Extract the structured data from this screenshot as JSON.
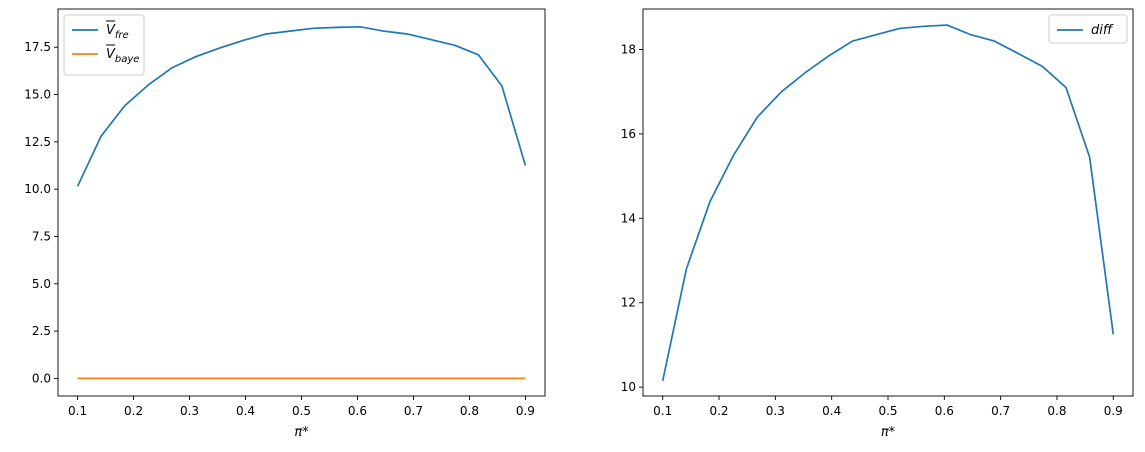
{
  "chart_data": [
    {
      "type": "line",
      "title": "",
      "xlabel": "π*",
      "ylabel": "",
      "xlim": [
        0.065,
        0.935
      ],
      "ylim": [
        -0.93,
        19.52
      ],
      "xticks": [
        "0.1",
        "0.2",
        "0.3",
        "0.4",
        "0.5",
        "0.6",
        "0.7",
        "0.8",
        "0.9"
      ],
      "yticks": [
        "0.0",
        "2.5",
        "5.0",
        "7.5",
        "10.0",
        "12.5",
        "15.0",
        "17.5"
      ],
      "grid": false,
      "legend_position": "top-left",
      "x": [
        0.1,
        0.142,
        0.184,
        0.226,
        0.268,
        0.311,
        0.353,
        0.395,
        0.437,
        0.479,
        0.521,
        0.563,
        0.605,
        0.647,
        0.689,
        0.732,
        0.774,
        0.816,
        0.858,
        0.9
      ],
      "series": [
        {
          "name": "V̄_fre",
          "color": "#1f77b4",
          "values": [
            10.15,
            12.8,
            14.4,
            15.5,
            16.4,
            17.0,
            17.45,
            17.85,
            18.2,
            18.35,
            18.5,
            18.55,
            18.58,
            18.35,
            18.2,
            17.9,
            17.6,
            17.1,
            15.45,
            11.25
          ]
        },
        {
          "name": "V̄_baye",
          "color": "#ff7f0e",
          "values": [
            0,
            0,
            0,
            0,
            0,
            0,
            0,
            0,
            0,
            0,
            0,
            0,
            0,
            0,
            0,
            0,
            0,
            0,
            0,
            0
          ]
        }
      ]
    },
    {
      "type": "line",
      "title": "",
      "xlabel": "π*",
      "ylabel": "",
      "xlim": [
        0.065,
        0.935
      ],
      "ylim": [
        9.79,
        18.96
      ],
      "xticks": [
        "0.1",
        "0.2",
        "0.3",
        "0.4",
        "0.5",
        "0.6",
        "0.7",
        "0.8",
        "0.9"
      ],
      "yticks": [
        "10",
        "12",
        "14",
        "16",
        "18"
      ],
      "grid": false,
      "legend_position": "top-right",
      "x": [
        0.1,
        0.142,
        0.184,
        0.226,
        0.268,
        0.311,
        0.353,
        0.395,
        0.437,
        0.479,
        0.521,
        0.563,
        0.605,
        0.647,
        0.689,
        0.732,
        0.774,
        0.816,
        0.858,
        0.9
      ],
      "series": [
        {
          "name": "diff",
          "color": "#1f77b4",
          "values": [
            10.15,
            12.8,
            14.4,
            15.5,
            16.4,
            17.0,
            17.45,
            17.85,
            18.2,
            18.35,
            18.5,
            18.55,
            18.58,
            18.35,
            18.2,
            17.9,
            17.6,
            17.1,
            15.45,
            11.25
          ]
        }
      ]
    }
  ]
}
